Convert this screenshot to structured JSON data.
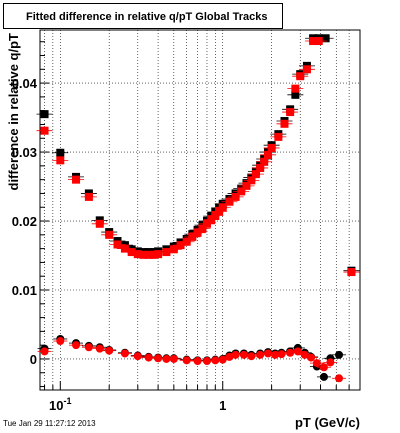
{
  "window": {
    "title": "Fitted difference in relative q/pT  Global Tracks",
    "footer_timestamp": "Tue Jan 29 11:27:12 2013"
  },
  "chart_data": {
    "type": "scatter",
    "title": "Fitted difference in relative q/pT  Global Tracks",
    "xlabel": "pT (GeV/c)",
    "ylabel": "difference in relative q/pT",
    "xscale": "log",
    "xlim": [
      0.075,
      7.0
    ],
    "ylim": [
      -0.0045,
      0.0477
    ],
    "x_tick_labels": [
      {
        "value": 0.1,
        "base": "10",
        "exp": "-1"
      },
      {
        "value": 1,
        "text": "1"
      }
    ],
    "y_ticks": [
      0,
      0.01,
      0.02,
      0.03,
      0.04
    ],
    "y_tick_labels": [
      "0",
      "0.01",
      "0.02",
      "0.03",
      "0.04"
    ],
    "grid": true,
    "colors": {
      "series_black": "#000000",
      "series_red": "#ff0000"
    },
    "series": [
      {
        "marker": "square",
        "color": "#000000",
        "x": [
          0.08,
          0.1,
          0.125,
          0.15,
          0.175,
          0.2,
          0.225,
          0.25,
          0.275,
          0.3,
          0.325,
          0.35,
          0.375,
          0.4,
          0.45,
          0.5,
          0.55,
          0.6,
          0.65,
          0.7,
          0.75,
          0.8,
          0.85,
          0.9,
          0.95,
          1.0,
          1.1,
          1.2,
          1.3,
          1.4,
          1.5,
          1.6,
          1.7,
          1.8,
          1.9,
          2.0,
          2.2,
          2.4,
          2.6,
          2.8,
          3.0,
          3.3,
          3.6,
          3.9,
          4.3,
          6.2
        ],
        "y": [
          0.0355,
          0.0299,
          0.0264,
          0.024,
          0.0201,
          0.0184,
          0.0171,
          0.0165,
          0.0159,
          0.0156,
          0.0155,
          0.0155,
          0.0155,
          0.0156,
          0.0159,
          0.0163,
          0.0169,
          0.0174,
          0.0181,
          0.0187,
          0.0194,
          0.02,
          0.0207,
          0.0213,
          0.0219,
          0.0225,
          0.0232,
          0.024,
          0.0247,
          0.0255,
          0.0263,
          0.0272,
          0.0281,
          0.029,
          0.03,
          0.031,
          0.0326,
          0.0345,
          0.0362,
          0.0383,
          0.0413,
          0.0425,
          0.0465,
          0.0465,
          0.0465,
          0.0128
        ]
      },
      {
        "marker": "square",
        "color": "#ff0000",
        "x": [
          0.08,
          0.1,
          0.125,
          0.15,
          0.175,
          0.2,
          0.225,
          0.25,
          0.275,
          0.3,
          0.325,
          0.35,
          0.375,
          0.4,
          0.45,
          0.5,
          0.55,
          0.6,
          0.65,
          0.7,
          0.75,
          0.8,
          0.85,
          0.9,
          0.95,
          1.0,
          1.1,
          1.2,
          1.3,
          1.4,
          1.5,
          1.6,
          1.7,
          1.8,
          1.9,
          2.0,
          2.2,
          2.4,
          2.6,
          2.8,
          3.0,
          3.3,
          3.6,
          3.9,
          6.2
        ],
        "y": [
          0.0331,
          0.0288,
          0.026,
          0.0235,
          0.0196,
          0.018,
          0.0166,
          0.016,
          0.0155,
          0.0152,
          0.0151,
          0.0151,
          0.0151,
          0.0152,
          0.0155,
          0.0159,
          0.0165,
          0.017,
          0.0177,
          0.0183,
          0.0189,
          0.0196,
          0.0202,
          0.0208,
          0.0214,
          0.022,
          0.0228,
          0.0235,
          0.0243,
          0.0251,
          0.0259,
          0.0268,
          0.0277,
          0.0286,
          0.0296,
          0.0306,
          0.0322,
          0.0341,
          0.0358,
          0.0392,
          0.041,
          0.042,
          0.0461,
          0.0461,
          0.0126
        ]
      },
      {
        "marker": "circle",
        "color": "#000000",
        "x": [
          0.08,
          0.1,
          0.125,
          0.15,
          0.175,
          0.2,
          0.25,
          0.3,
          0.35,
          0.4,
          0.45,
          0.5,
          0.6,
          0.7,
          0.8,
          0.9,
          1.0,
          1.1,
          1.2,
          1.35,
          1.5,
          1.7,
          1.9,
          2.1,
          2.3,
          2.6,
          2.9,
          3.2,
          3.5,
          3.8,
          4.2,
          4.6,
          5.2
        ],
        "y": [
          0.0015,
          0.0029,
          0.0023,
          0.0019,
          0.0017,
          0.0013,
          0.0009,
          0.0005,
          0.0003,
          0.0002,
          0.0001,
          0.0001,
          -0.0001,
          -0.0002,
          -0.0002,
          -0.0001,
          0.0,
          0.0005,
          0.0008,
          0.0008,
          0.0006,
          0.0008,
          0.001,
          0.0008,
          0.0009,
          0.0011,
          0.0016,
          0.0009,
          0.0003,
          -0.0011,
          -0.0026,
          0.0001,
          0.0006
        ]
      },
      {
        "marker": "circle",
        "color": "#ff0000",
        "x": [
          0.08,
          0.1,
          0.125,
          0.15,
          0.175,
          0.2,
          0.25,
          0.3,
          0.35,
          0.4,
          0.45,
          0.5,
          0.6,
          0.7,
          0.8,
          0.9,
          1.0,
          1.1,
          1.2,
          1.35,
          1.5,
          1.7,
          1.9,
          2.1,
          2.3,
          2.6,
          2.9,
          3.2,
          3.5,
          3.8,
          4.2,
          4.6,
          5.2
        ],
        "y": [
          0.0011,
          0.0026,
          0.002,
          0.0017,
          0.0015,
          0.0012,
          0.0008,
          0.0004,
          0.0002,
          0.0001,
          0.0,
          0.0,
          -0.0002,
          -0.0003,
          -0.0003,
          -0.0002,
          -0.0001,
          0.0003,
          0.0006,
          0.0006,
          0.0004,
          0.0006,
          0.0008,
          0.0006,
          0.0007,
          0.0009,
          0.0011,
          0.0006,
          0.0002,
          -0.0006,
          -0.0012,
          -0.0005,
          -0.0028
        ]
      }
    ]
  }
}
